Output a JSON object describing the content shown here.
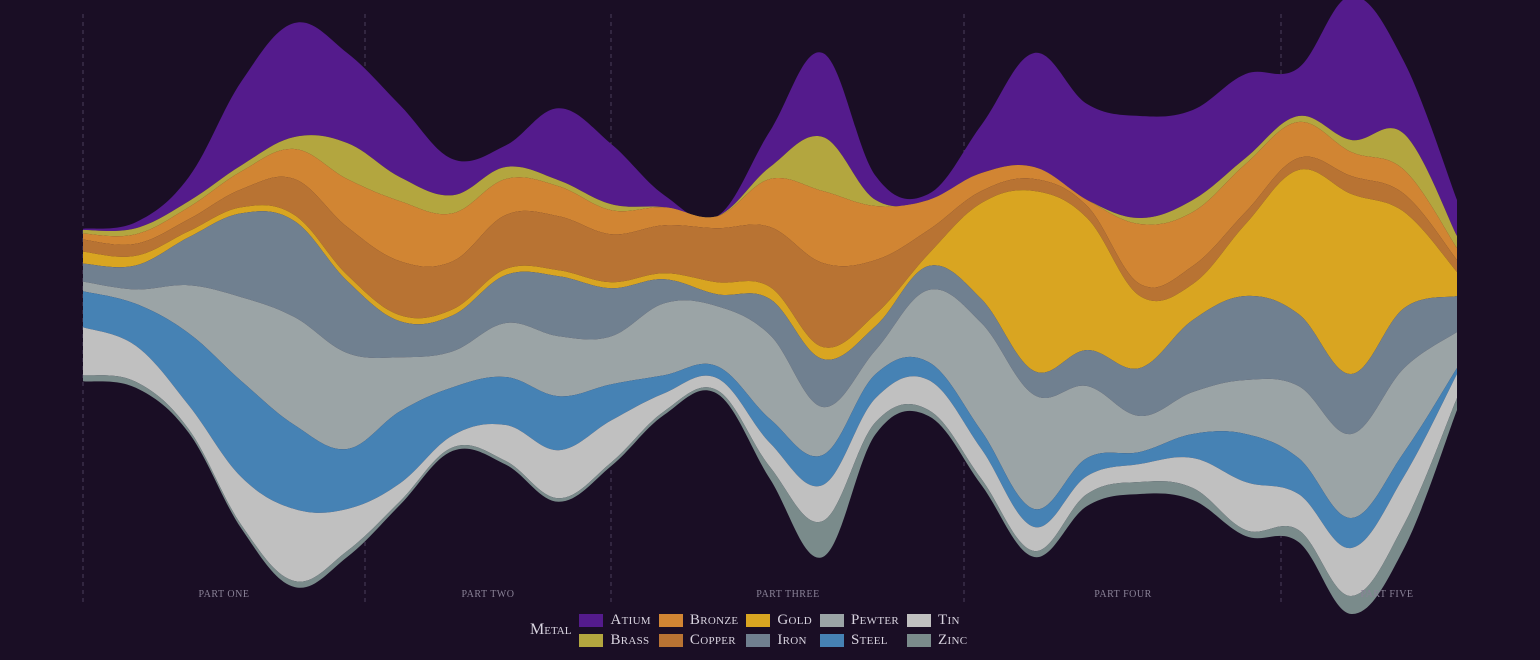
{
  "chart_data": {
    "type": "area",
    "subtype": "streamgraph",
    "x": [
      0,
      0.5,
      1,
      1.5,
      2,
      2.5,
      3,
      3.5,
      4,
      4.5,
      5,
      5.5,
      6,
      6.5,
      7,
      7.5,
      8,
      8.5,
      9,
      9.5,
      10,
      10.5,
      11,
      11.5,
      12,
      12.5,
      13
    ],
    "parts": [
      "PART ONE",
      "PART TWO",
      "PART THREE",
      "PART FOUR",
      "PART FIVE"
    ],
    "series": [
      {
        "name": "Atium",
        "color": "#541b8c",
        "values": [
          1,
          5,
          20,
          70,
          95,
          75,
          60,
          30,
          18,
          60,
          50,
          10,
          0,
          30,
          70,
          20,
          5,
          40,
          95,
          80,
          85,
          75,
          70,
          40,
          120,
          60,
          30
        ]
      },
      {
        "name": "Brass",
        "color": "#b3a63f",
        "values": [
          3,
          5,
          5,
          5,
          10,
          30,
          20,
          15,
          10,
          5,
          5,
          0,
          0,
          10,
          45,
          5,
          0,
          0,
          0,
          0,
          5,
          10,
          5,
          5,
          10,
          30,
          10
        ]
      },
      {
        "name": "Bronze",
        "color": "#d18533",
        "values": [
          5,
          8,
          10,
          15,
          25,
          40,
          50,
          40,
          30,
          25,
          20,
          15,
          10,
          40,
          60,
          45,
          25,
          15,
          10,
          5,
          50,
          45,
          40,
          30,
          20,
          20,
          10
        ]
      },
      {
        "name": "Copper",
        "color": "#b87333",
        "values": [
          10,
          10,
          10,
          15,
          30,
          40,
          45,
          40,
          45,
          45,
          40,
          40,
          45,
          50,
          70,
          45,
          20,
          10,
          10,
          10,
          10,
          15,
          10,
          10,
          15,
          15,
          10
        ]
      },
      {
        "name": "Gold",
        "color": "#d9a521",
        "values": [
          10,
          8,
          5,
          5,
          5,
          5,
          5,
          5,
          5,
          5,
          5,
          5,
          10,
          10,
          10,
          10,
          10,
          80,
          150,
          110,
          60,
          30,
          60,
          120,
          150,
          80,
          20
        ]
      },
      {
        "name": "Iron",
        "color": "#708090",
        "values": [
          15,
          20,
          40,
          70,
          80,
          60,
          30,
          30,
          40,
          50,
          40,
          20,
          10,
          30,
          40,
          20,
          20,
          20,
          20,
          30,
          40,
          60,
          70,
          60,
          50,
          50,
          30
        ]
      },
      {
        "name": "Pewter",
        "color": "#9ba4a6",
        "values": [
          8,
          12,
          40,
          70,
          90,
          80,
          45,
          30,
          45,
          50,
          40,
          60,
          50,
          70,
          40,
          20,
          60,
          90,
          95,
          60,
          30,
          35,
          45,
          60,
          70,
          70,
          30
        ]
      },
      {
        "name": "Steel",
        "color": "#4682b4",
        "values": [
          30,
          35,
          60,
          80,
          70,
          50,
          60,
          40,
          40,
          45,
          30,
          15,
          10,
          20,
          25,
          20,
          15,
          15,
          15,
          15,
          10,
          20,
          40,
          30,
          25,
          20,
          5
        ]
      },
      {
        "name": "Tin",
        "color": "#c0c0c0",
        "values": [
          40,
          30,
          20,
          40,
          60,
          35,
          15,
          10,
          30,
          40,
          35,
          15,
          10,
          20,
          30,
          20,
          25,
          25,
          20,
          15,
          15,
          25,
          40,
          30,
          40,
          40,
          20
        ]
      },
      {
        "name": "Zinc",
        "color": "#7a8b8b",
        "values": [
          5,
          5,
          3,
          3,
          5,
          5,
          3,
          3,
          3,
          3,
          3,
          3,
          3,
          10,
          30,
          10,
          5,
          5,
          5,
          10,
          10,
          10,
          5,
          10,
          15,
          20,
          10
        ]
      }
    ],
    "legend": {
      "title": "Metal",
      "position": "bottom-center"
    },
    "xlabel": "",
    "ylabel": "",
    "grid": false
  }
}
